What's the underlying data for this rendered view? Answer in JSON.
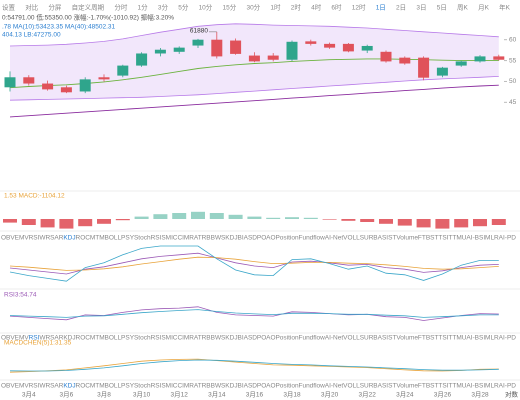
{
  "header": {
    "toolbar": [
      "设置",
      "对比",
      "分屏",
      "自定义周期",
      "分时",
      "1分",
      "3分",
      "5分",
      "10分",
      "15分",
      "30分",
      "1时",
      "2时",
      "4时",
      "6时",
      "12时",
      "1日",
      "2日",
      "3日",
      "5日",
      "周K",
      "月K",
      "年K"
    ],
    "toolbar_active": 16,
    "price_line": "0:54791.00 低:55350.00 涨幅:-1.70%(-1010.92) 振幅:3.20%",
    "ma_line": ".78  MA(10):53423.35  MA(40):48502.31",
    "boll_line": "404.13  LB:47275.00"
  },
  "tabs": {
    "items": [
      "OBV",
      "EMV",
      "RSI",
      "WR",
      "SAR",
      "KDJ",
      "ROC",
      "MTM",
      "BOLL",
      "PSY",
      "StochRSI",
      "SMI",
      "CCI",
      "MR",
      "ATR",
      "BBW",
      "SKDJ",
      "BIAS",
      "DPO",
      "AO",
      "Position",
      "Fundflow",
      "AI-NetVOL",
      "LSUR",
      "BASIS",
      "TVolume",
      "FTBS",
      "TTSI",
      "TTMU",
      "AI-BSI",
      "MLR",
      "AI-PD"
    ],
    "rows": [
      {
        "active": 5
      },
      {
        "active": 2
      },
      {
        "active": 5
      }
    ]
  },
  "scale_mode": "对数",
  "chart_data": [
    {
      "type": "candlestick",
      "up_color": "#2fa58c",
      "down_color": "#e0525a",
      "categories": [
        null,
        "3月4",
        null,
        "3月6",
        null,
        "3月8",
        null,
        "3月10",
        null,
        "3月12",
        null,
        "3月14",
        null,
        "3月16",
        null,
        "3月18",
        null,
        "3月20",
        null,
        "3月22",
        null,
        "3月24",
        null,
        "3月26",
        null,
        "3月28",
        null
      ],
      "candles": [
        {
          "open": 48600,
          "high": 52400,
          "low": 47600,
          "close": 51000
        },
        {
          "open": 51000,
          "high": 51500,
          "low": 49000,
          "close": 49500
        },
        {
          "open": 49500,
          "high": 50200,
          "low": 47800,
          "close": 48100
        },
        {
          "open": 48600,
          "high": 49000,
          "low": 47200,
          "close": 47400
        },
        {
          "open": 47600,
          "high": 51000,
          "low": 47200,
          "close": 50500
        },
        {
          "open": 51000,
          "high": 51700,
          "low": 50000,
          "close": 50500
        },
        {
          "open": 51400,
          "high": 54000,
          "low": 51000,
          "close": 53800
        },
        {
          "open": 53800,
          "high": 57000,
          "low": 53500,
          "close": 56700
        },
        {
          "open": 56700,
          "high": 58000,
          "low": 56000,
          "close": 57600
        },
        {
          "open": 57100,
          "high": 58400,
          "low": 56600,
          "close": 58100
        },
        {
          "open": 58600,
          "high": 60200,
          "low": 58000,
          "close": 60000
        },
        {
          "open": 60000,
          "high": 61880,
          "low": 55500,
          "close": 56000
        },
        {
          "open": 59800,
          "high": 60300,
          "low": 56400,
          "close": 56600
        },
        {
          "open": 56200,
          "high": 57000,
          "low": 54600,
          "close": 54800
        },
        {
          "open": 56200,
          "high": 56800,
          "low": 54800,
          "close": 55200
        },
        {
          "open": 55200,
          "high": 59800,
          "low": 54900,
          "close": 59500
        },
        {
          "open": 59600,
          "high": 60000,
          "low": 58600,
          "close": 59000
        },
        {
          "open": 59000,
          "high": 59300,
          "low": 57800,
          "close": 58100
        },
        {
          "open": 59000,
          "high": 59200,
          "low": 57000,
          "close": 57200
        },
        {
          "open": 57400,
          "high": 58800,
          "low": 56800,
          "close": 58500
        },
        {
          "open": 57100,
          "high": 57400,
          "low": 54500,
          "close": 54800
        },
        {
          "open": 55700,
          "high": 56000,
          "low": 54000,
          "close": 54300
        },
        {
          "open": 55700,
          "high": 56000,
          "low": 50300,
          "close": 50900
        },
        {
          "open": 51400,
          "high": 53500,
          "low": 51000,
          "close": 53300
        },
        {
          "open": 53800,
          "high": 55000,
          "low": 53500,
          "close": 54800
        },
        {
          "open": 54800,
          "high": 56300,
          "low": 54500,
          "close": 56000
        },
        {
          "open": 56000,
          "high": 56400,
          "low": 55000,
          "close": 55200
        }
      ],
      "band": {
        "color": "#b77ae8",
        "upper": [
          58500,
          58600,
          58700,
          58900,
          59200,
          59600,
          60200,
          61000,
          61800,
          62500,
          63200,
          63600,
          63800,
          63700,
          63500,
          63400,
          63300,
          63200,
          63000,
          62800,
          62500,
          62200,
          61900,
          61600,
          61300,
          61000,
          60700
        ],
        "lower": [
          45500,
          45600,
          45700,
          45800,
          45900,
          46000,
          46100,
          46200,
          46400,
          46600,
          46800,
          47100,
          47400,
          47700,
          48000,
          48300,
          48600,
          48900,
          49200,
          49500,
          49800,
          50100,
          50400,
          50600,
          50800,
          51000,
          51200
        ]
      },
      "series": [
        {
          "color": "#6cb33f",
          "values": [
            48500,
            48800,
            49000,
            49200,
            49500,
            49900,
            50400,
            51000,
            51700,
            52400,
            53100,
            53600,
            54000,
            54300,
            54500,
            54800,
            55000,
            55200,
            55300,
            55400,
            55400,
            55300,
            55200,
            55100,
            55000,
            55000,
            55000
          ]
        },
        {
          "color": "#8a2c9e",
          "values": [
            41500,
            41800,
            42100,
            42400,
            42700,
            43000,
            43300,
            43600,
            43900,
            44200,
            44500,
            44800,
            45100,
            45400,
            45700,
            46000,
            46300,
            46600,
            46900,
            47200,
            47500,
            47800,
            48100,
            48400,
            48700,
            48900,
            49100
          ]
        }
      ],
      "ylim": [
        24000,
        64000
      ],
      "yticks": [
        {
          "value": 60000,
          "label": "60"
        },
        {
          "value": 55000,
          "label": "55"
        },
        {
          "value": 50000,
          "label": "50"
        },
        {
          "value": 45000,
          "label": "45"
        }
      ]
    },
    {
      "type": "bar",
      "title": "1.53  MACD:-1104.12",
      "up_color": "#2fa58c",
      "down_color": "#e0525a",
      "ylim": [
        -1000,
        1000
      ],
      "values": [
        -300,
        -500,
        -700,
        -800,
        -600,
        -400,
        -100,
        200,
        400,
        500,
        600,
        500,
        350,
        200,
        100,
        150,
        100,
        -50,
        -150,
        -250,
        -400,
        -550,
        -700,
        -800,
        -700,
        -600,
        -500
      ]
    },
    {
      "type": "line",
      "ylim": [
        0,
        100
      ],
      "series": [
        {
          "color": "#9b59b6",
          "values": [
            45,
            40,
            35,
            30,
            42,
            48,
            58,
            68,
            74,
            78,
            82,
            70,
            58,
            50,
            46,
            60,
            62,
            58,
            52,
            54,
            46,
            42,
            34,
            38,
            46,
            52,
            54
          ]
        },
        {
          "color": "#e8a33a",
          "values": [
            50,
            47,
            43,
            39,
            40,
            43,
            48,
            55,
            61,
            67,
            72,
            71,
            67,
            61,
            56,
            57,
            59,
            59,
            57,
            56,
            53,
            49,
            44,
            42,
            43,
            46,
            49
          ]
        },
        {
          "color": "#3aa6c9",
          "values": [
            35,
            26,
            19,
            12,
            46,
            58,
            78,
            94,
            100,
            100,
            100,
            68,
            40,
            28,
            26,
            66,
            68,
            56,
            42,
            50,
            32,
            28,
            14,
            30,
            52,
            64,
            64
          ]
        }
      ]
    },
    {
      "type": "line",
      "title": "RSI3:54.74",
      "ylim": [
        0,
        100
      ],
      "series": [
        {
          "color": "#9b59b6",
          "values": [
            48,
            44,
            40,
            36,
            52,
            50,
            60,
            68,
            72,
            74,
            78,
            60,
            52,
            50,
            48,
            62,
            60,
            56,
            52,
            54,
            46,
            44,
            34,
            42,
            50,
            56,
            54.74
          ]
        },
        {
          "color": "#3aa6c9",
          "values": [
            50,
            48,
            46,
            44,
            48,
            49,
            54,
            59,
            63,
            66,
            69,
            63,
            58,
            55,
            53,
            57,
            57,
            56,
            54,
            54,
            51,
            49,
            44,
            46,
            49,
            52,
            52
          ]
        }
      ]
    },
    {
      "type": "line",
      "title": "MACDCHEN(5)1:31.35",
      "ylim": [
        0,
        100
      ],
      "series": [
        {
          "color": "#e8a33a",
          "values": [
            20,
            22,
            25,
            28,
            35,
            42,
            50,
            58,
            62,
            64,
            65,
            60,
            55,
            50,
            45,
            44,
            42,
            40,
            38,
            36,
            32,
            28,
            25,
            24,
            26,
            30,
            31
          ]
        },
        {
          "color": "#3aa6c9",
          "values": [
            25,
            24,
            24,
            26,
            30,
            35,
            42,
            50,
            56,
            60,
            62,
            61,
            58,
            54,
            50,
            47,
            45,
            42,
            40,
            38,
            35,
            32,
            29,
            27,
            27,
            28,
            30
          ]
        }
      ]
    }
  ]
}
